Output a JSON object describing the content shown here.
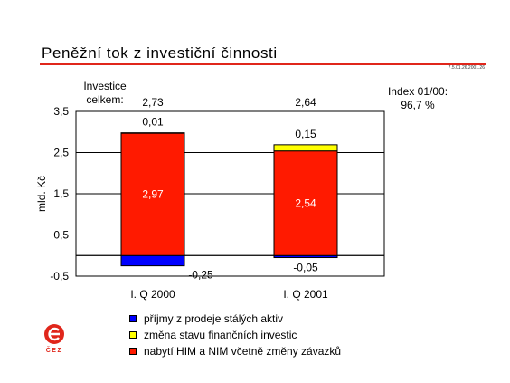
{
  "slide": {
    "title": "Peněžní tok z investiční činnosti",
    "code": "7.5.01.26.2001.26",
    "investice_label": "Investice\ncelkem:",
    "index_label": "Index 01/00:",
    "index_value": "96,7 %",
    "logo_text": "ČEZ"
  },
  "colors": {
    "accent_red": "#e0261b",
    "bar_red": "#ff1a00",
    "bar_yellow": "#ffff00",
    "bar_blue": "#0000ff"
  },
  "chart_data": {
    "type": "bar",
    "stacked": true,
    "categories": [
      "I. Q 2000",
      "I. Q 2001"
    ],
    "ylabel": "mld. Kč",
    "ylim": [
      -0.5,
      3.5
    ],
    "yticks": [
      -0.5,
      0.5,
      1.5,
      2.5,
      3.5
    ],
    "ytick_labels": [
      "-0,5",
      "0,5",
      "1,5",
      "2,5",
      "3,5"
    ],
    "grid": true,
    "legend_position": "bottom",
    "totals": [
      {
        "value": 2.73,
        "label": "2,73"
      },
      {
        "value": 2.64,
        "label": "2,64"
      }
    ],
    "series": [
      {
        "name": "příjmy z prodeje stálých aktiv",
        "color": "#0000ff",
        "values": [
          -0.25,
          -0.05
        ],
        "labels": [
          "-0,25",
          "-0,05"
        ]
      },
      {
        "name": "změna stavu finančních investic",
        "color": "#ffff00",
        "values": [
          0.01,
          0.15
        ],
        "labels": [
          "0,01",
          "0,15"
        ]
      },
      {
        "name": "nabytí HIM a NIM včetně změny závazků",
        "color": "#ff1a00",
        "values": [
          2.97,
          2.54
        ],
        "labels": [
          "2,97",
          "2,54"
        ]
      }
    ]
  }
}
